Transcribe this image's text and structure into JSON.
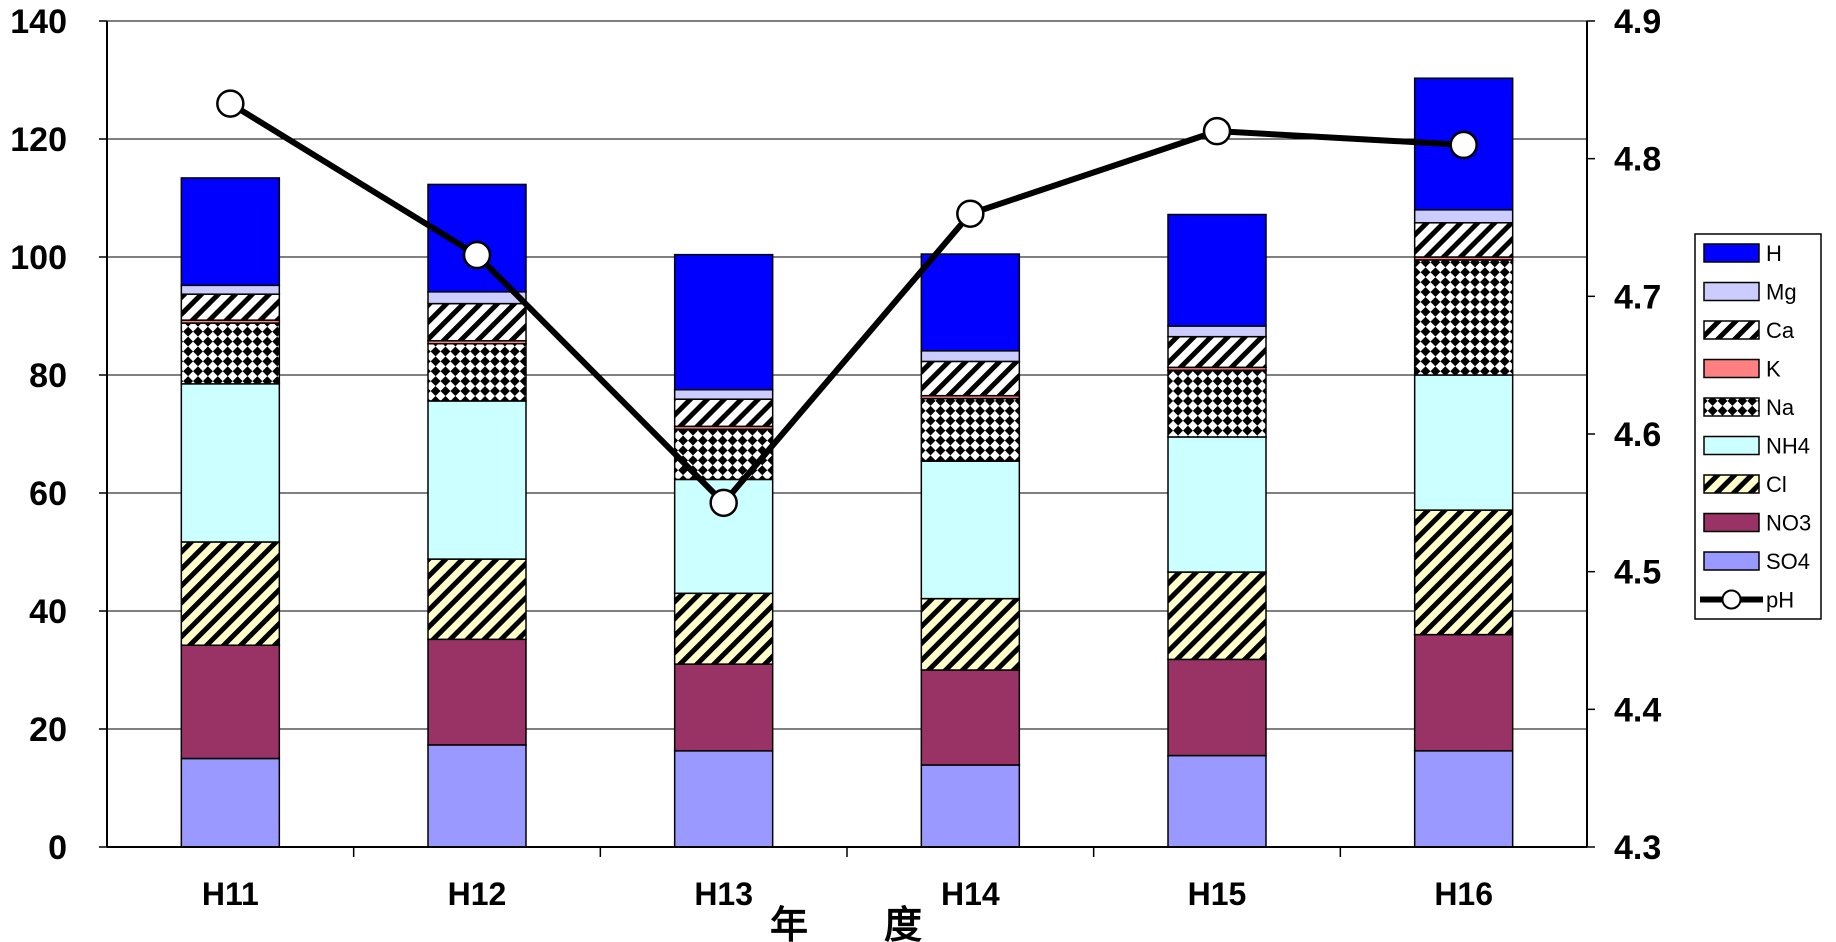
{
  "chart_data": {
    "type": "bar",
    "stacked": true,
    "categories": [
      "H11",
      "H12",
      "H13",
      "H14",
      "H15",
      "H16"
    ],
    "xlabel": "年　　度",
    "ylim": [
      0,
      140
    ],
    "y_ticks": [
      "0",
      "20",
      "40",
      "60",
      "80",
      "100",
      "120",
      "140"
    ],
    "y2lim": [
      4.3,
      4.9
    ],
    "y2_ticks": [
      "4.3",
      "4.4",
      "4.5",
      "4.6",
      "4.7",
      "4.8",
      "4.9"
    ],
    "grid": true,
    "legend_position": "right",
    "series": [
      {
        "name": "SO4",
        "color": "#9999ff",
        "pattern": "solid",
        "values": [
          15.0,
          17.3,
          16.3,
          13.9,
          15.5,
          16.3
        ]
      },
      {
        "name": "NO3",
        "color": "#993366",
        "pattern": "solid",
        "values": [
          19.2,
          17.9,
          14.7,
          16.1,
          16.3,
          19.7
        ]
      },
      {
        "name": "Cl",
        "color": "#ffffcc",
        "pattern": "hatch",
        "values": [
          17.5,
          13.6,
          12.0,
          12.1,
          14.8,
          21.1
        ]
      },
      {
        "name": "NH4",
        "color": "#ccffff",
        "pattern": "solid",
        "values": [
          26.8,
          26.8,
          19.3,
          23.3,
          22.9,
          22.9
        ]
      },
      {
        "name": "Na",
        "color": "#ffffff",
        "pattern": "checker",
        "values": [
          10.3,
          9.7,
          8.5,
          10.6,
          11.3,
          19.5
        ]
      },
      {
        "name": "K",
        "color": "#ff8080",
        "pattern": "solid",
        "values": [
          0.5,
          0.5,
          0.5,
          0.5,
          0.5,
          0.5
        ]
      },
      {
        "name": "Ca",
        "color": "#ffffff",
        "pattern": "hatch",
        "values": [
          4.4,
          6.3,
          4.6,
          5.8,
          5.2,
          5.8
        ]
      },
      {
        "name": "Mg",
        "color": "#ccccff",
        "pattern": "solid",
        "values": [
          1.5,
          2.0,
          1.6,
          1.8,
          1.8,
          2.2
        ]
      },
      {
        "name": "H",
        "color": "#0000ff",
        "pattern": "solid",
        "values": [
          18.2,
          18.2,
          22.9,
          16.4,
          18.9,
          22.3
        ]
      }
    ],
    "line_series": {
      "name": "pH",
      "axis": "right",
      "color": "#000000",
      "values": [
        4.84,
        4.73,
        4.55,
        4.76,
        4.82,
        4.81
      ]
    }
  }
}
